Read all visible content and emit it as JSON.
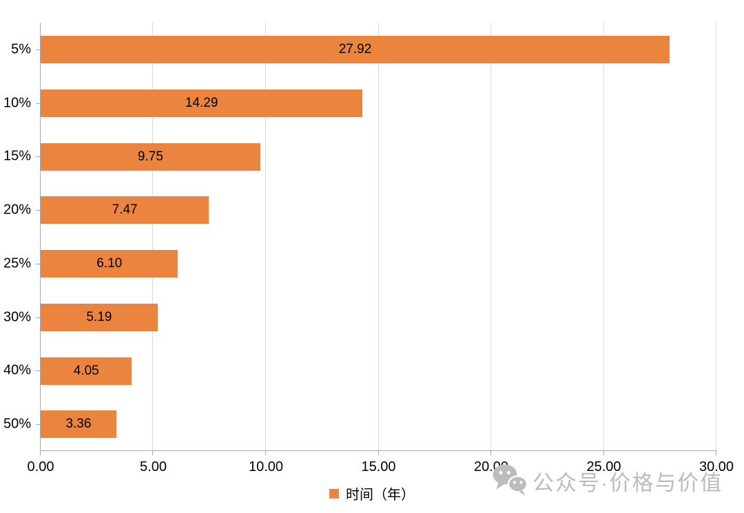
{
  "chart_data": {
    "type": "bar",
    "orientation": "horizontal",
    "title": "",
    "categories": [
      "5%",
      "10%",
      "15%",
      "20%",
      "25%",
      "30%",
      "40%",
      "50%"
    ],
    "series": [
      {
        "name": "时间（年）",
        "values": [
          27.92,
          14.29,
          9.75,
          7.47,
          6.1,
          5.19,
          4.05,
          3.36
        ],
        "value_labels": [
          "27.92",
          "14.29",
          "9.75",
          "7.47",
          "6.10",
          "5.19",
          "4.05",
          "3.36"
        ],
        "color": "#eb843e"
      }
    ],
    "xlabel": "",
    "ylabel": "",
    "xlim": [
      0,
      30
    ],
    "x_ticks": [
      0,
      5,
      10,
      15,
      20,
      25,
      30
    ],
    "x_tick_labels": [
      "0.00",
      "5.00",
      "10.00",
      "15.00",
      "20.00",
      "25.00",
      "30.00"
    ],
    "grid": "vertical",
    "data_labels": "center",
    "legend_position": "bottom"
  },
  "legend": {
    "marker_color": "#eb843e",
    "label": "时间（年）"
  },
  "watermark": {
    "text": "公众号·价格与价值",
    "icon": "wechat-icon",
    "color": "#bcbcbc"
  },
  "colors": {
    "bar": "#eb843e",
    "gridline": "#d9d9d9",
    "axis": "#a6a6a6",
    "text": "#000000"
  }
}
